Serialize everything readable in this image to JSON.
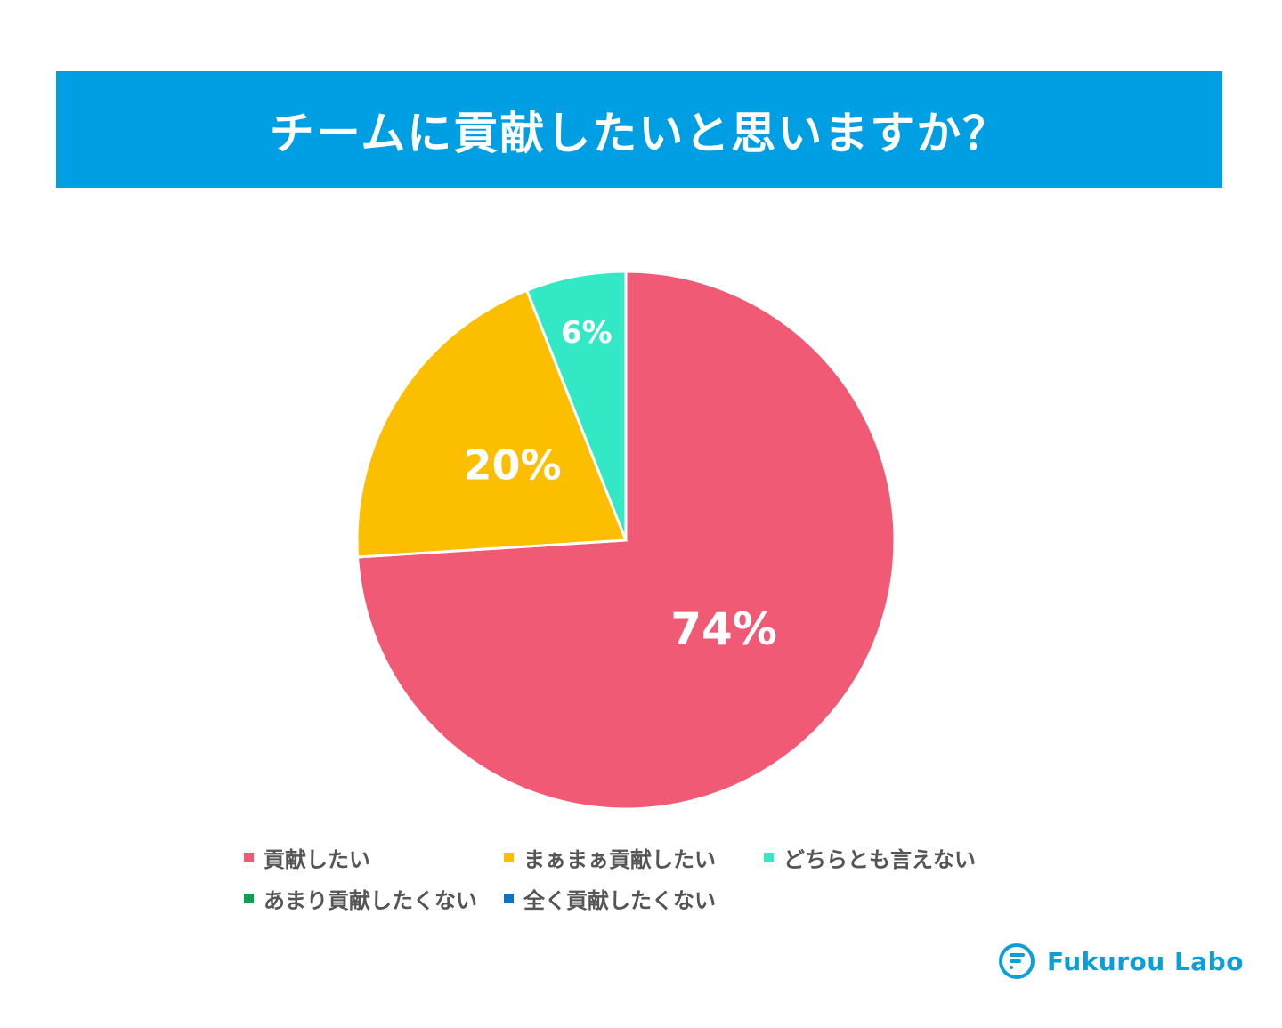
{
  "title": "チームに貢献したいと思いますか？",
  "chart_data": {
    "type": "pie",
    "title": "チームに貢献したいと思いますか？",
    "slices": [
      {
        "label": "貢献したい",
        "value": 74,
        "display": "74%",
        "color": "#f05a75"
      },
      {
        "label": "まぁまぁ貢献したい",
        "value": 20,
        "display": "20%",
        "color": "#fbbf00"
      },
      {
        "label": "どちらとも言えない",
        "value": 6,
        "display": "6%",
        "color": "#33e8c4"
      },
      {
        "label": "あまり貢献したくない",
        "value": 0,
        "display": "",
        "color": "#119f4f"
      },
      {
        "label": "全く貢献したくない",
        "value": 0,
        "display": "",
        "color": "#1170c0"
      }
    ],
    "legend_position": "bottom"
  },
  "legend": [
    {
      "label": "貢献したい",
      "color": "#f05a75"
    },
    {
      "label": "まぁまぁ貢献したい",
      "color": "#fbbf00"
    },
    {
      "label": "どちらとも言えない",
      "color": "#33e8c4"
    },
    {
      "label": "あまり貢献したくない",
      "color": "#119f4f"
    },
    {
      "label": "全く貢献したくない",
      "color": "#1170c0"
    }
  ],
  "logo": {
    "text": "Fukurou Labo",
    "color": "#0a9fd8",
    "icon": "fukurou-logo-icon"
  }
}
